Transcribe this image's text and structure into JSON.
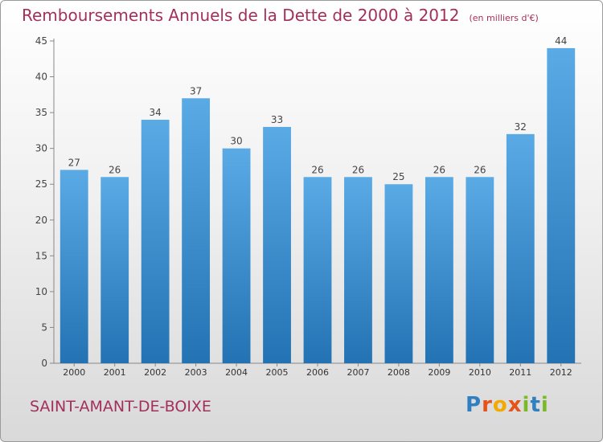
{
  "title": "Remboursements Annuels de la Dette de 2000 à 2012",
  "unit_note": "(en milliers d'€)",
  "commune": "SAINT-AMANT-DE-BOIXE",
  "logo": {
    "letters": [
      "P",
      "r",
      "o",
      "x",
      "i",
      "t",
      "i"
    ],
    "colors": [
      "#2f7fc1",
      "#e5531a",
      "#f2a900",
      "#e5531a",
      "#7ab929",
      "#2f7fc1",
      "#7ab929"
    ]
  },
  "colors": {
    "bar_light": "#5aaae6",
    "bar_dark": "#2373b4",
    "title": "#a3305b"
  },
  "chart_data": {
    "type": "bar",
    "categories": [
      "2000",
      "2001",
      "2002",
      "2003",
      "2004",
      "2005",
      "2006",
      "2007",
      "2008",
      "2009",
      "2010",
      "2011",
      "2012"
    ],
    "values": [
      27,
      26,
      34,
      37,
      30,
      33,
      26,
      26,
      25,
      26,
      26,
      32,
      44
    ],
    "ylim": [
      0,
      45
    ],
    "yticks": [
      0,
      5,
      10,
      15,
      20,
      25,
      30,
      35,
      40,
      45
    ],
    "title": "Remboursements Annuels de la Dette de 2000 à 2012",
    "xlabel": "",
    "ylabel": "",
    "grid": false
  }
}
